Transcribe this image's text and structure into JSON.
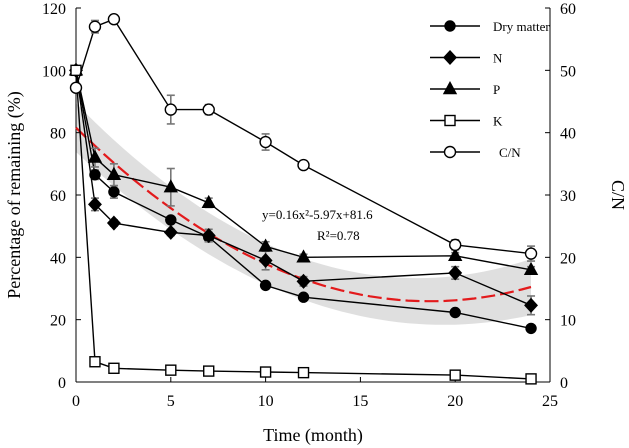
{
  "chart_data": {
    "type": "line",
    "xlabel": "Time (month)",
    "ylabel": "Percentage of remaining (%)",
    "y2label": "C/N",
    "xlim": [
      0,
      25
    ],
    "ylim": [
      0,
      120
    ],
    "y2lim": [
      0,
      60
    ],
    "x_ticks": [
      0,
      5,
      10,
      15,
      20,
      25
    ],
    "y_ticks": [
      0,
      20,
      40,
      60,
      80,
      100,
      120
    ],
    "y2_ticks": [
      0,
      10,
      20,
      30,
      40,
      50,
      60
    ],
    "series": [
      {
        "name": "Dry matter",
        "marker": "filled-circle",
        "axis": "left",
        "x": [
          0,
          1,
          2,
          5,
          7,
          10,
          12,
          20,
          24
        ],
        "values": [
          100,
          66.5,
          61,
          52,
          46.5,
          31,
          27.2,
          22.3,
          17.2
        ],
        "errors": [
          0,
          1.5,
          2,
          1,
          1.5,
          1,
          1,
          0.5,
          0.5
        ]
      },
      {
        "name": "N",
        "marker": "filled-diamond",
        "axis": "left",
        "x": [
          0,
          1,
          2,
          5,
          7,
          10,
          12,
          20,
          24
        ],
        "values": [
          100,
          57,
          51,
          48,
          47,
          39,
          32.3,
          35,
          24.6
        ],
        "errors": [
          0,
          2,
          1,
          1,
          2,
          3,
          1.5,
          2,
          3
        ]
      },
      {
        "name": "P",
        "marker": "filled-triangle",
        "axis": "left",
        "x": [
          0,
          1,
          2,
          5,
          7,
          10,
          12,
          20,
          24
        ],
        "values": [
          100,
          72,
          66.5,
          62.5,
          57.5,
          43.5,
          40,
          40.5,
          36
        ],
        "errors": [
          0,
          3,
          3.5,
          6,
          1.5,
          1.5,
          1,
          1,
          1
        ]
      },
      {
        "name": "K",
        "marker": "open-square",
        "axis": "left",
        "x": [
          0,
          1,
          2,
          5,
          7,
          10,
          12,
          20,
          24
        ],
        "values": [
          100,
          6.5,
          4.4,
          3.8,
          3.5,
          3.2,
          3.0,
          2.2,
          1.0
        ],
        "errors": [
          0,
          0,
          0,
          0,
          0,
          0,
          0,
          0,
          0
        ]
      },
      {
        "name": "C/N",
        "marker": "open-circle",
        "axis": "right",
        "x": [
          0,
          1,
          2,
          5,
          7,
          10,
          12,
          20,
          24
        ],
        "values": [
          47.2,
          57,
          58.2,
          43.7,
          43.7,
          38.5,
          34.8,
          22,
          20.6
        ],
        "errors": [
          0,
          1,
          0.5,
          2.3,
          0.8,
          1.3,
          0.5,
          0.8,
          1.2
        ]
      }
    ],
    "fit": {
      "equation": "y=0.16x²-5.97x+81.6",
      "r2": "R²=0.78",
      "coefficients": [
        0.16,
        -5.97,
        81.6
      ],
      "x_range": [
        0,
        24
      ],
      "band_half_width_start": 6,
      "band_half_width_end": 9,
      "color": "#e31a1c"
    },
    "legend": {
      "position": "top-right"
    },
    "colors": {
      "line": "#000000",
      "band": "#d9d9d9",
      "errorbar": "#777777",
      "fit": "#e31a1c"
    }
  }
}
